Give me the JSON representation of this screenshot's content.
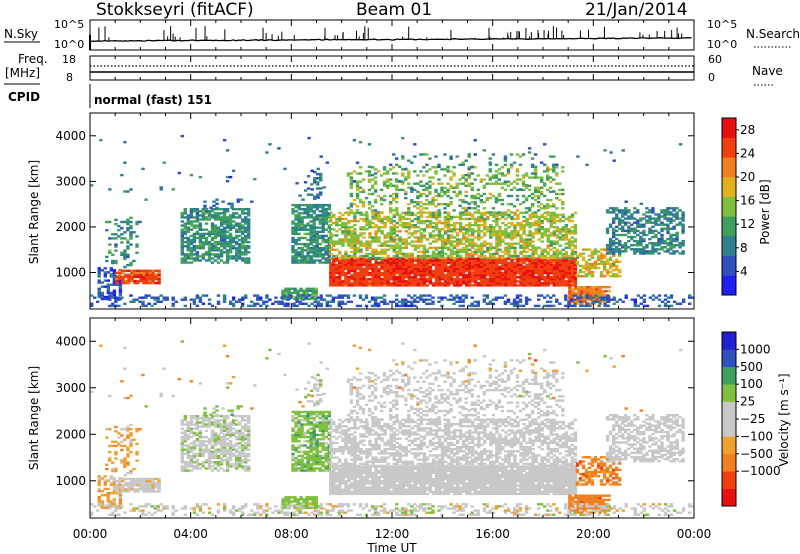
{
  "header": {
    "station": "Stokkseyri (fitACF)",
    "beam": "Beam 01",
    "date": "21/Jan/2014"
  },
  "strips": {
    "nsky_label": "N.Sky",
    "nsearch_label": "N.Search",
    "nsky_ticks": [
      "10^5",
      "10^0"
    ],
    "nsearch_ticks": [
      "10^5",
      "10^0"
    ],
    "freq_label": "Freq.",
    "freq_unit": "[MHz]",
    "freq_ticks": [
      "18",
      "8"
    ],
    "nave_label": "Nave",
    "nave_ticks": [
      "60",
      "0"
    ],
    "cpid_label": "CPID",
    "cpid_value": "normal (fast) 151"
  },
  "colors": {
    "power": [
      "#2020f0",
      "#3050c0",
      "#2f7f8f",
      "#3f9f5f",
      "#7fbf3f",
      "#e0b020",
      "#f08020",
      "#f04010",
      "#e81010"
    ],
    "velocity": [
      "#e81010",
      "#f04010",
      "#f08020",
      "#f0a030",
      "#c8c8c8",
      "#c8c8c8",
      "#80c040",
      "#3f9f5f",
      "#3050c0",
      "#2020d0"
    ]
  },
  "chart_data": [
    {
      "type": "heatmap",
      "panel": "power",
      "ylabel": "Slant Range [km]",
      "yticks": [
        "1000",
        "2000",
        "3000",
        "4000"
      ],
      "ylim": [
        200,
        4500
      ],
      "xlim": [
        0,
        24
      ],
      "colorbar_label": "Power [dB]",
      "colorbar_ticks": [
        "4",
        "8",
        "12",
        "16",
        "20",
        "24",
        "28"
      ],
      "colorbar_range": [
        0,
        30
      ]
    },
    {
      "type": "heatmap",
      "panel": "velocity",
      "ylabel": "Slant Range [km]",
      "yticks": [
        "1000",
        "2000",
        "3000",
        "4000"
      ],
      "ylim": [
        200,
        4500
      ],
      "xlim": [
        0,
        24
      ],
      "xticks": [
        "00:00",
        "04:00",
        "08:00",
        "12:00",
        "16:00",
        "20:00",
        "00:00"
      ],
      "xlabel": "Time UT",
      "colorbar_label": "Velocity [m s⁻¹]",
      "colorbar_ticks": [
        "1000",
        "500",
        "100",
        "25",
        "−25",
        "−100",
        "−500",
        "−1000"
      ]
    }
  ]
}
